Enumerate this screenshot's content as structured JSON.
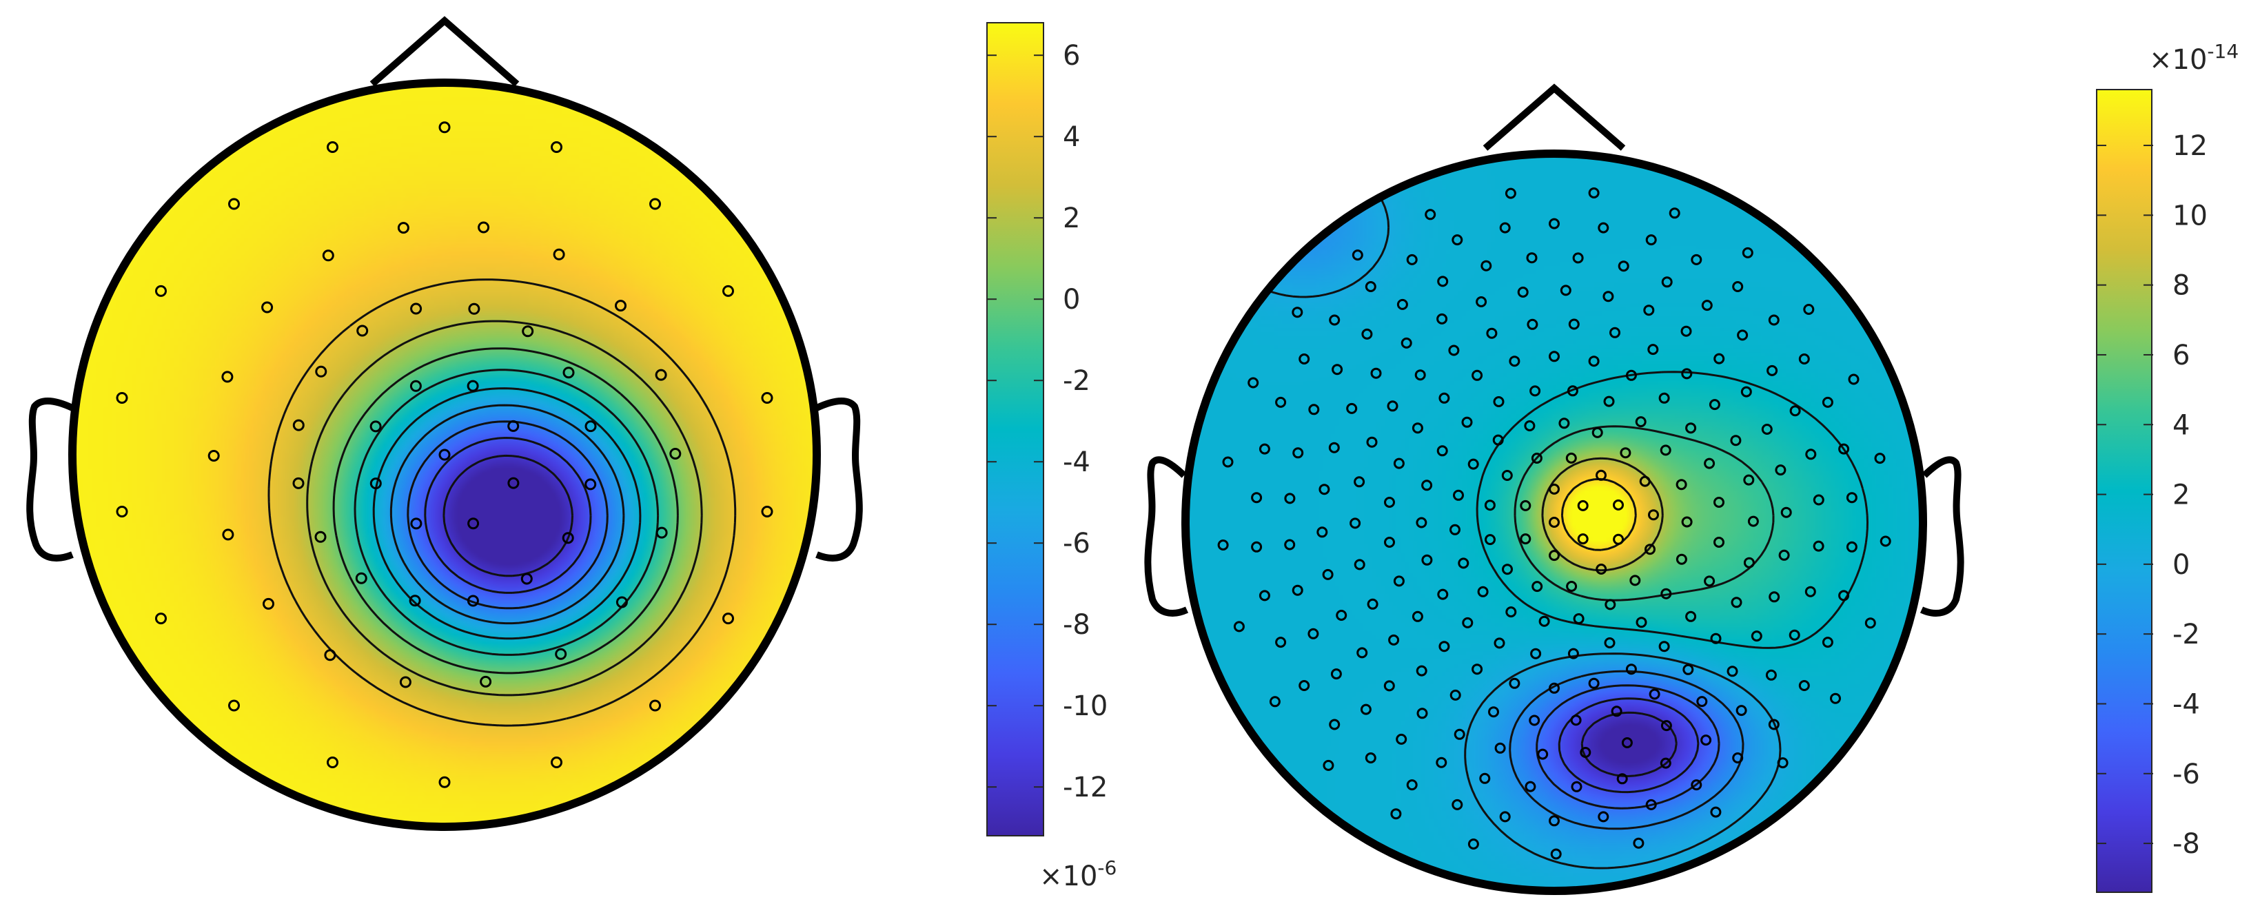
{
  "chart_data": [
    {
      "type": "heatmap",
      "subtype": "topographic-scalp-map",
      "title": "",
      "colormap": "parula",
      "contour_lines": true,
      "sensor_markers": "small-open-circles",
      "sensor_count": 61,
      "field": {
        "background_level": 6.5,
        "extrema": [
          {
            "kind": "minimum",
            "value": -13,
            "location": "center-right of head"
          }
        ]
      },
      "colorbar": {
        "clim": [
          -13.2,
          6.8
        ],
        "ticks": [
          -12,
          -10,
          -8,
          -6,
          -4,
          -2,
          0,
          2,
          4,
          6
        ],
        "tick_labels": [
          "-12",
          "-10",
          "-8",
          "-6",
          "-4",
          "-2",
          "0",
          "2",
          "4",
          "6"
        ],
        "exponent_label": "×10",
        "exponent": "-6",
        "exponent_position": "below"
      }
    },
    {
      "type": "heatmap",
      "subtype": "topographic-scalp-map",
      "title": "",
      "colormap": "parula",
      "contour_lines": true,
      "sensor_markers": "small-open-circles",
      "sensor_count": 248,
      "field": {
        "background_level": 1,
        "extrema": [
          {
            "kind": "maximum",
            "value": 13,
            "location": "center-right of head"
          },
          {
            "kind": "minimum",
            "value": -9,
            "location": "lower-right of head"
          }
        ]
      },
      "colorbar": {
        "clim": [
          -9.4,
          13.6
        ],
        "ticks": [
          -8,
          -6,
          -4,
          -2,
          0,
          2,
          4,
          6,
          8,
          10,
          12
        ],
        "tick_labels": [
          "-8",
          "-6",
          "-4",
          "-2",
          "0",
          "2",
          "4",
          "6",
          "8",
          "10",
          "12"
        ],
        "exponent_label": "×10",
        "exponent": "-14",
        "exponent_position": "above"
      }
    }
  ]
}
